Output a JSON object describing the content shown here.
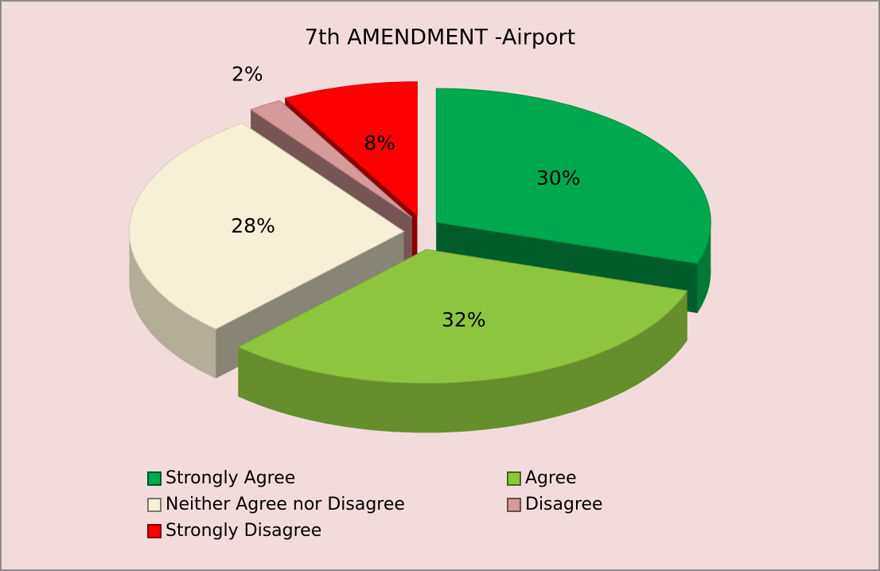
{
  "chart_data": {
    "type": "pie",
    "title": "7th AMENDMENT -Airport",
    "categories": [
      "Strongly Agree",
      "Agree",
      "Neither Agree nor Disagree",
      "Disagree",
      "Strongly Disagree"
    ],
    "values": [
      30,
      32,
      28,
      2,
      8
    ],
    "value_labels": [
      "30%",
      "32%",
      "28%",
      "2%",
      "8%"
    ],
    "colors": [
      "#00a84f",
      "#8dc53e",
      "#f8f0d6",
      "#d69a9a",
      "#ff0000"
    ],
    "legend": "bottom"
  }
}
